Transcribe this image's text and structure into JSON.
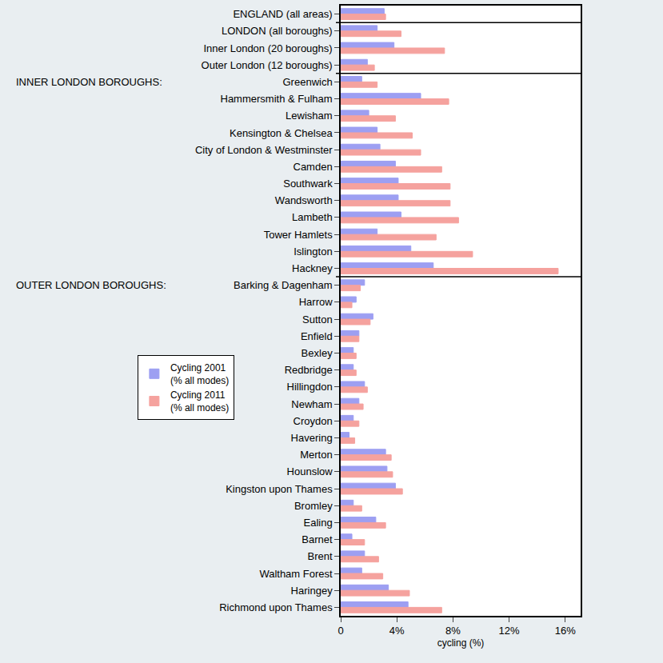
{
  "chart_data": {
    "type": "bar",
    "orientation": "horizontal",
    "categories": [
      "ENGLAND (all areas)",
      "LONDON (all boroughs)",
      "Inner London (20 boroughs)",
      "Outer London (12 boroughs)",
      "Greenwich",
      "Hammersmith & Fulham",
      "Lewisham",
      "Kensington & Chelsea",
      "City of London & Westminster",
      "Camden",
      "Southwark",
      "Wandsworth",
      "Lambeth",
      "Tower Hamlets",
      "Islington",
      "Hackney",
      "Barking & Dagenham",
      "Harrow",
      "Sutton",
      "Enfield",
      "Bexley",
      "Redbridge",
      "Hillingdon",
      "Newham",
      "Croydon",
      "Havering",
      "Merton",
      "Hounslow",
      "Kingston upon Thames",
      "Bromley",
      "Ealing",
      "Barnet",
      "Brent",
      "Waltham Forest",
      "Haringey",
      "Richmond upon Thames"
    ],
    "series": [
      {
        "name": "Cycling 2001\n(% all modes)",
        "color": "#9d9ff2",
        "values": [
          3.1,
          2.6,
          3.8,
          1.9,
          1.5,
          5.7,
          2.0,
          2.6,
          2.8,
          3.9,
          4.1,
          4.1,
          4.3,
          2.6,
          5.0,
          6.6,
          1.7,
          1.1,
          2.3,
          1.3,
          0.9,
          0.9,
          1.7,
          1.3,
          0.9,
          0.6,
          3.2,
          3.3,
          3.9,
          0.9,
          2.5,
          0.8,
          1.7,
          1.5,
          3.4,
          4.8
        ]
      },
      {
        "name": "Cycling 2011\n(% all modes)",
        "color": "#f5a29e",
        "values": [
          3.2,
          4.3,
          7.4,
          2.4,
          2.6,
          7.7,
          3.9,
          5.1,
          5.7,
          7.2,
          7.8,
          7.8,
          8.4,
          6.8,
          9.4,
          15.5,
          1.4,
          0.8,
          2.1,
          1.3,
          1.1,
          1.1,
          1.9,
          1.6,
          1.3,
          1.0,
          3.6,
          3.7,
          4.4,
          1.5,
          3.2,
          1.7,
          2.7,
          3.0,
          4.9,
          7.2
        ]
      }
    ],
    "x_label": "cycling (%)",
    "xlim": [
      0,
      17.1
    ],
    "xticks": [
      0,
      {
        "value": 4,
        "label": "4%"
      },
      {
        "value": 8,
        "label": "8%"
      },
      {
        "value": 12,
        "label": "12%"
      },
      {
        "value": 16,
        "label": "16%"
      }
    ],
    "grid": false,
    "legend": "left",
    "annotations": [
      {
        "text": "INNER LONDON BOROUGHS:",
        "category": "Greenwich"
      },
      {
        "text": "OUTER LONDON BOROUGHS:",
        "category": "Barking & Dagenham"
      }
    ]
  }
}
